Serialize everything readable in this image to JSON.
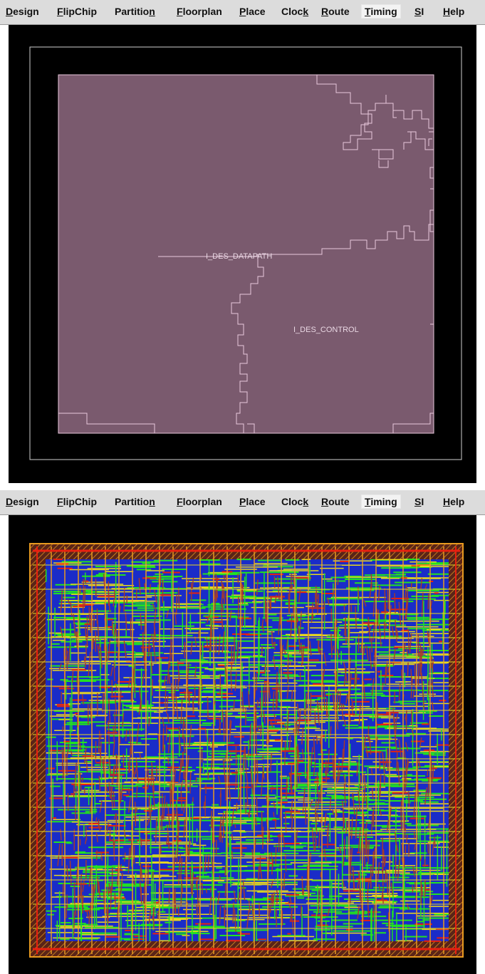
{
  "menus": [
    {
      "id": "design",
      "label": "Design",
      "ul": 0
    },
    {
      "id": "flipchip",
      "label": "FlipChip",
      "ul": 0
    },
    {
      "id": "partition",
      "label": "Partition",
      "ul": 8
    },
    {
      "id": "floorplan",
      "label": "Floorplan",
      "ul": 0
    },
    {
      "id": "place",
      "label": "Place",
      "ul": 0
    },
    {
      "id": "clock",
      "label": "Clock",
      "ul": 4
    },
    {
      "id": "route",
      "label": "Route",
      "ul": 0
    },
    {
      "id": "timing",
      "label": "Timing",
      "ul": 0
    },
    {
      "id": "si",
      "label": "SI",
      "ul": 0
    },
    {
      "id": "help",
      "label": "Help",
      "ul": 0
    }
  ],
  "active_menu": "timing",
  "floorplan_view": {
    "partition_labels": {
      "datapath": "I_DES_DATAPATH",
      "control": "I_DES_CONTROL"
    },
    "colors": {
      "background": "#000000",
      "core_fill": "#7a5a6e",
      "boundary": "#e8c8dc",
      "die_outline": "#cfcfcf",
      "label": "#ead8e4"
    }
  },
  "routed_view": {
    "colors": {
      "background": "#000000",
      "metal_blue": "#1a2cc8",
      "metal_green": "#22e022",
      "metal_yellow": "#e8d820",
      "metal_red": "#e82010",
      "metal_brown": "#a83a2a",
      "metal_orange": "#e89a20"
    }
  }
}
